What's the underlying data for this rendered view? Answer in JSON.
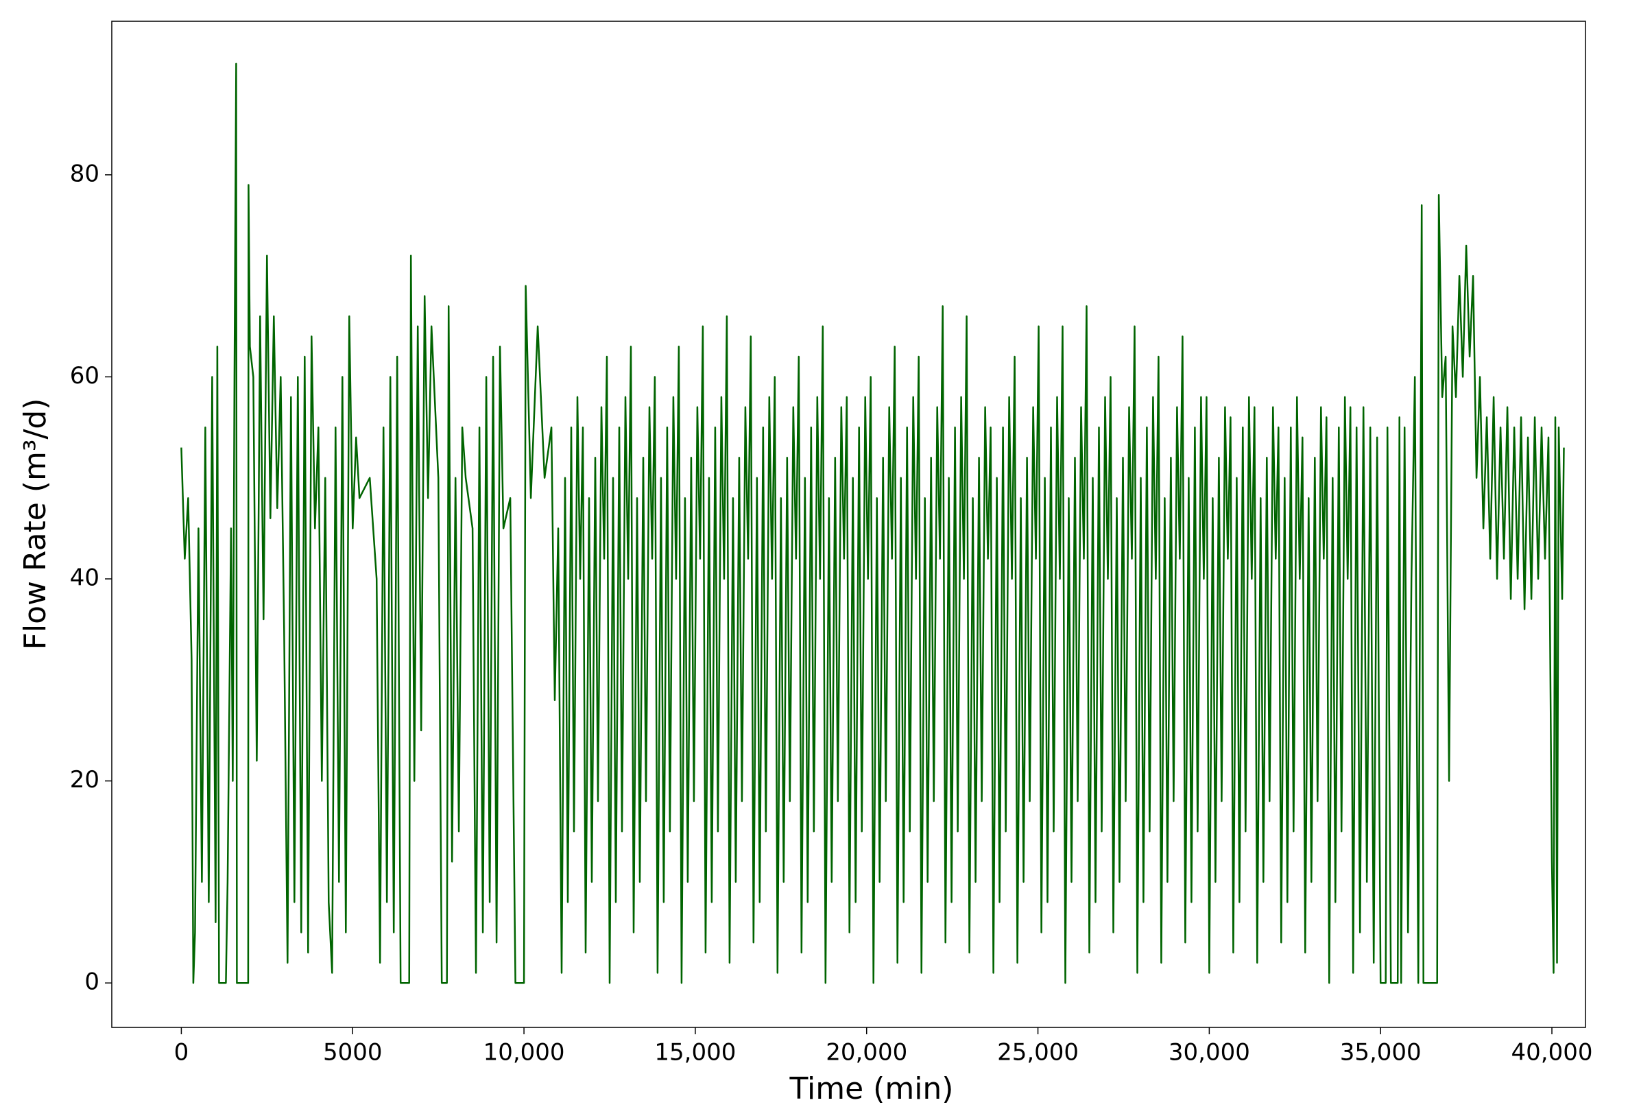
{
  "chart_data": {
    "type": "line",
    "xlabel": "Time (min)",
    "ylabel": "Flow Rate (m³/d)",
    "color": "#006400",
    "xlim": [
      -2030,
      40980
    ],
    "ylim": [
      -4.4,
      95.2
    ],
    "xticks": [
      0,
      5000,
      {
        "value": 10000,
        "label": "10,000"
      },
      {
        "value": 15000,
        "label": "15,000"
      },
      {
        "value": 20000,
        "label": "20,000"
      },
      {
        "value": 25000,
        "label": "25,000"
      },
      {
        "value": 30000,
        "label": "30,000"
      },
      {
        "value": 35000,
        "label": "35,000"
      },
      {
        "value": 40000,
        "label": "40,000"
      }
    ],
    "yticks": [
      0,
      20,
      40,
      60,
      80
    ],
    "grid": false,
    "x": [
      0,
      100,
      200,
      300,
      350,
      400,
      500,
      600,
      700,
      800,
      900,
      1000,
      1050,
      1100,
      1300,
      1350,
      1450,
      1500,
      1550,
      1600,
      1620,
      1950,
      1960,
      2000,
      2100,
      2200,
      2300,
      2400,
      2500,
      2600,
      2700,
      2800,
      2900,
      3000,
      3100,
      3200,
      3300,
      3400,
      3500,
      3600,
      3700,
      3800,
      3900,
      4000,
      4100,
      4200,
      4300,
      4400,
      4500,
      4600,
      4700,
      4800,
      4900,
      5000,
      5100,
      5200,
      5500,
      5700,
      5800,
      5900,
      6000,
      6100,
      6200,
      6300,
      6400,
      6650,
      6700,
      6800,
      6900,
      7000,
      7100,
      7200,
      7300,
      7500,
      7600,
      7750,
      7800,
      7900,
      8000,
      8100,
      8200,
      8300,
      8500,
      8600,
      8700,
      8800,
      8900,
      9000,
      9100,
      9200,
      9300,
      9400,
      9600,
      9750,
      10000,
      10050,
      10200,
      10400,
      10600,
      10800,
      10900,
      11000,
      11100,
      11200,
      11280,
      11380,
      11460,
      11560,
      11640,
      11720,
      11800,
      11900,
      11980,
      12080,
      12160,
      12260,
      12340,
      12420,
      12500,
      12600,
      12680,
      12780,
      12860,
      12960,
      13040,
      13120,
      13200,
      13300,
      13380,
      13480,
      13560,
      13660,
      13740,
      13820,
      13900,
      14000,
      14080,
      14180,
      14260,
      14360,
      14440,
      14520,
      14600,
      14700,
      14780,
      14880,
      14960,
      15060,
      15140,
      15220,
      15300,
      15400,
      15480,
      15580,
      15660,
      15760,
      15840,
      15920,
      16000,
      16100,
      16180,
      16280,
      16360,
      16460,
      16540,
      16620,
      16700,
      16800,
      16880,
      16980,
      17060,
      17160,
      17240,
      17320,
      17400,
      17500,
      17580,
      17680,
      17760,
      17860,
      17940,
      18020,
      18100,
      18200,
      18280,
      18380,
      18460,
      18560,
      18640,
      18720,
      18800,
      18900,
      18980,
      19080,
      19160,
      19260,
      19340,
      19420,
      19500,
      19600,
      19680,
      19780,
      19860,
      19960,
      20040,
      20120,
      20200,
      20300,
      20380,
      20480,
      20560,
      20660,
      20740,
      20820,
      20900,
      21000,
      21080,
      21180,
      21260,
      21360,
      21440,
      21520,
      21600,
      21700,
      21780,
      21880,
      21960,
      22060,
      22140,
      22220,
      22300,
      22400,
      22480,
      22580,
      22660,
      22760,
      22840,
      22920,
      23000,
      23100,
      23180,
      23280,
      23360,
      23460,
      23540,
      23620,
      23700,
      23800,
      23880,
      23980,
      24060,
      24160,
      24240,
      24320,
      24400,
      24500,
      24580,
      24680,
      24760,
      24860,
      24940,
      25020,
      25100,
      25200,
      25280,
      25380,
      25460,
      25560,
      25640,
      25720,
      25800,
      25900,
      25980,
      26080,
      26160,
      26260,
      26340,
      26420,
      26500,
      26600,
      26680,
      26780,
      26860,
      26960,
      27040,
      27120,
      27200,
      27300,
      27380,
      27480,
      27560,
      27660,
      27740,
      27820,
      27900,
      28000,
      28080,
      28180,
      28260,
      28360,
      28440,
      28520,
      28600,
      28700,
      28780,
      28880,
      28960,
      29060,
      29140,
      29220,
      29300,
      29400,
      29480,
      29580,
      29660,
      29760,
      29840,
      29920,
      30000,
      30100,
      30180,
      30280,
      30360,
      30460,
      30540,
      30620,
      30700,
      30800,
      30880,
      30980,
      31060,
      31160,
      31240,
      31320,
      31400,
      31500,
      31580,
      31680,
      31760,
      31860,
      31940,
      32020,
      32100,
      32200,
      32280,
      32380,
      32460,
      32560,
      32640,
      32720,
      32800,
      32900,
      32980,
      33080,
      33160,
      33260,
      33340,
      33420,
      33500,
      33600,
      33680,
      33780,
      33860,
      33960,
      34040,
      34120,
      34200,
      34300,
      34400,
      34500,
      34600,
      34700,
      34800,
      34900,
      35000,
      35150,
      35200,
      35300,
      35500,
      35550,
      35600,
      35700,
      35800,
      35900,
      36000,
      36100,
      36200,
      36250,
      36650,
      36700,
      36800,
      36900,
      37000,
      37100,
      37200,
      37300,
      37400,
      37500,
      37600,
      37700,
      37800,
      37900,
      38000,
      38100,
      38200,
      38300,
      38400,
      38500,
      38600,
      38700,
      38800,
      38900,
      39000,
      39100,
      39200,
      39300,
      39400,
      39500,
      39600,
      39700,
      39800,
      39900,
      40000,
      40050,
      40100,
      40150,
      40200,
      40300,
      40350
    ],
    "values": [
      53,
      42,
      48,
      32,
      0,
      5,
      45,
      10,
      55,
      8,
      60,
      6,
      63,
      0,
      0,
      10,
      45,
      20,
      60,
      91,
      0,
      0,
      79,
      63,
      60,
      22,
      66,
      36,
      72,
      46,
      66,
      47,
      60,
      35,
      2,
      58,
      8,
      60,
      5,
      62,
      3,
      64,
      45,
      55,
      20,
      50,
      8,
      1,
      55,
      10,
      60,
      5,
      66,
      45,
      54,
      48,
      50,
      40,
      2,
      55,
      8,
      60,
      5,
      62,
      0,
      0,
      72,
      20,
      65,
      25,
      68,
      48,
      65,
      50,
      0,
      0,
      67,
      12,
      50,
      15,
      55,
      50,
      45,
      1,
      55,
      5,
      60,
      8,
      62,
      4,
      63,
      45,
      48,
      0,
      0,
      69,
      48,
      65,
      50,
      55,
      28,
      45,
      1,
      50,
      8,
      55,
      15,
      58,
      40,
      55,
      3,
      48,
      10,
      52,
      18,
      57,
      42,
      62,
      0,
      50,
      8,
      55,
      15,
      58,
      40,
      63,
      5,
      48,
      10,
      52,
      18,
      57,
      42,
      60,
      1,
      50,
      8,
      55,
      15,
      58,
      40,
      63,
      0,
      48,
      10,
      52,
      18,
      57,
      42,
      65,
      3,
      50,
      8,
      55,
      15,
      58,
      40,
      66,
      2,
      48,
      10,
      52,
      18,
      57,
      42,
      64,
      4,
      50,
      8,
      55,
      15,
      58,
      40,
      60,
      1,
      48,
      10,
      52,
      18,
      57,
      42,
      62,
      3,
      50,
      8,
      55,
      15,
      58,
      40,
      65,
      0,
      48,
      10,
      52,
      18,
      57,
      42,
      58,
      5,
      50,
      8,
      55,
      15,
      58,
      40,
      60,
      0,
      48,
      10,
      52,
      18,
      57,
      42,
      63,
      2,
      50,
      8,
      55,
      15,
      58,
      40,
      62,
      1,
      48,
      10,
      52,
      18,
      57,
      42,
      67,
      4,
      50,
      8,
      55,
      15,
      58,
      40,
      66,
      3,
      48,
      10,
      52,
      18,
      57,
      42,
      55,
      1,
      50,
      8,
      55,
      15,
      58,
      40,
      62,
      2,
      48,
      10,
      52,
      18,
      57,
      42,
      65,
      5,
      50,
      8,
      55,
      15,
      58,
      40,
      65,
      0,
      48,
      10,
      52,
      18,
      57,
      42,
      67,
      3,
      50,
      8,
      55,
      15,
      58,
      40,
      60,
      5,
      48,
      10,
      52,
      18,
      57,
      42,
      65,
      1,
      50,
      8,
      55,
      15,
      58,
      40,
      62,
      2,
      48,
      10,
      52,
      18,
      57,
      42,
      64,
      4,
      50,
      8,
      55,
      15,
      58,
      40,
      58,
      1,
      48,
      10,
      52,
      18,
      57,
      42,
      56,
      3,
      50,
      8,
      55,
      15,
      58,
      40,
      57,
      2,
      48,
      10,
      52,
      18,
      57,
      42,
      55,
      4,
      50,
      8,
      55,
      15,
      58,
      40,
      54,
      3,
      48,
      10,
      52,
      18,
      57,
      42,
      56,
      0,
      50,
      8,
      55,
      15,
      58,
      40,
      57,
      1,
      55,
      5,
      57,
      10,
      55,
      2,
      54,
      0,
      0,
      55,
      0,
      0,
      56,
      0,
      55,
      5,
      40,
      60,
      0,
      77,
      0,
      0,
      78,
      58,
      62,
      20,
      65,
      58,
      70,
      60,
      73,
      62,
      70,
      50,
      60,
      45,
      56,
      42,
      58,
      40,
      55,
      42,
      57,
      38,
      55,
      40,
      56,
      37,
      54,
      38,
      56,
      40,
      55,
      42,
      54,
      12,
      1,
      56,
      2,
      55,
      38,
      53
    ]
  }
}
